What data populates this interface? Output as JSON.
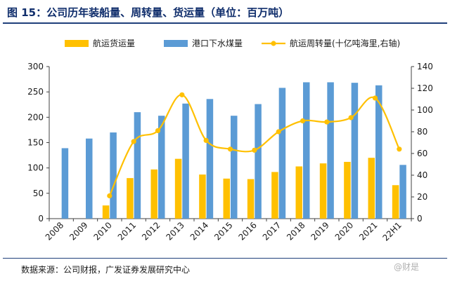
{
  "figure": {
    "title": "图 15：公司历年装船量、周转量、货运量（单位：百万吨）",
    "source": "数据来源：公司财报，广发证券发展研究中心",
    "watermark": "@财是"
  },
  "chart_data": {
    "type": "bar",
    "categories": [
      "2008",
      "2009",
      "2010",
      "2011",
      "2012",
      "2013",
      "2014",
      "2015",
      "2016",
      "2017",
      "2018",
      "2019",
      "2020",
      "2021",
      "22H1"
    ],
    "series": [
      {
        "name": "航运货运量",
        "type": "bar",
        "axis": "left",
        "color": "#FFC000",
        "values": [
          null,
          null,
          26,
          80,
          97,
          118,
          87,
          79,
          78,
          92,
          103,
          109,
          112,
          120,
          66
        ]
      },
      {
        "name": "港口下水煤量",
        "type": "bar",
        "axis": "left",
        "color": "#5B9BD5",
        "values": [
          139,
          158,
          170,
          210,
          203,
          227,
          236,
          203,
          226,
          258,
          269,
          269,
          268,
          263,
          106
        ]
      },
      {
        "name": "航运周转量(十亿吨海里,右轴)",
        "type": "line",
        "axis": "right",
        "color": "#FFC000",
        "values": [
          null,
          null,
          21,
          71,
          81,
          114,
          72,
          64,
          63,
          80,
          90,
          89,
          93,
          111,
          64
        ]
      }
    ],
    "left_axis": {
      "min": 0,
      "max": 300,
      "step": 50,
      "ticks": [
        "0",
        "50",
        "100",
        "150",
        "200",
        "250",
        "300"
      ]
    },
    "right_axis": {
      "min": 0,
      "max": 140,
      "step": 20,
      "ticks": [
        "0",
        "20",
        "40",
        "60",
        "80",
        "100",
        "120",
        "140"
      ]
    },
    "legend_position": "top",
    "grid": false
  }
}
